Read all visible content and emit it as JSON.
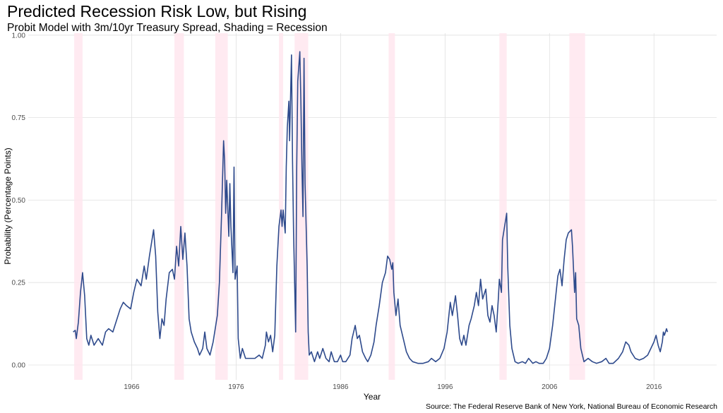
{
  "chart_data": {
    "type": "line",
    "title": "Predicted Recession Risk Low, but Rising",
    "subtitle": "Probit Model with 3m/10yr Treasury Spread, Shading = Recession",
    "xlabel": "Year",
    "ylabel": "Probability (Percentage Points)",
    "caption": "Source: The Federal Reserve Bank of New York, National Bureau of Economic Research",
    "xlim": [
      1956.1,
      2022
    ],
    "ylim": [
      -0.045,
      1.006
    ],
    "xticks": [
      1966,
      1976,
      1986,
      1996,
      2006,
      2016
    ],
    "yticks": [
      {
        "value": 0,
        "label": "0.00"
      },
      {
        "value": 0.25,
        "label": "0.25"
      },
      {
        "value": 0.5,
        "label": "0.50"
      },
      {
        "value": 0.75,
        "label": "0.75"
      },
      {
        "value": 1,
        "label": "1.00"
      }
    ],
    "grid": true,
    "recession_color": "#ffe6ee",
    "recessions": [
      [
        1960.5,
        1961.3
      ],
      [
        1970.1,
        1971.0
      ],
      [
        1974.0,
        1975.2
      ],
      [
        1980.1,
        1980.5
      ],
      [
        1981.6,
        1982.9
      ],
      [
        1990.6,
        1991.2
      ],
      [
        2001.2,
        2001.9
      ],
      [
        2007.9,
        2009.4
      ]
    ],
    "x": [
      1960.4,
      1960.6,
      1960.7,
      1960.9,
      1961.1,
      1961.3,
      1961.5,
      1961.7,
      1961.9,
      1962.1,
      1962.4,
      1962.8,
      1963.2,
      1963.5,
      1963.8,
      1964.2,
      1964.5,
      1964.9,
      1965.2,
      1965.5,
      1965.9,
      1966.2,
      1966.5,
      1966.9,
      1967.2,
      1967.4,
      1967.7,
      1967.9,
      1968.1,
      1968.3,
      1968.5,
      1968.7,
      1968.9,
      1969.1,
      1969.3,
      1969.6,
      1969.9,
      1970.1,
      1970.3,
      1970.5,
      1970.7,
      1970.9,
      1971.1,
      1971.3,
      1971.5,
      1971.7,
      1972.0,
      1972.3,
      1972.5,
      1972.8,
      1973.0,
      1973.2,
      1973.5,
      1973.8,
      1974.0,
      1974.2,
      1974.4,
      1974.6,
      1974.8,
      1974.9,
      1975.0,
      1975.1,
      1975.3,
      1975.4,
      1975.5,
      1975.7,
      1975.8,
      1975.9,
      1976.1,
      1976.2,
      1976.4,
      1976.6,
      1976.9,
      1977.4,
      1977.8,
      1978.2,
      1978.5,
      1978.8,
      1978.9,
      1979.1,
      1979.3,
      1979.5,
      1979.7,
      1979.9,
      1980.1,
      1980.3,
      1980.4,
      1980.5,
      1980.7,
      1980.8,
      1980.9,
      1981.05,
      1981.12,
      1981.3,
      1981.4,
      1981.5,
      1981.7,
      1981.8,
      1981.9,
      1982.1,
      1982.2,
      1982.3,
      1982.4,
      1982.5,
      1982.6,
      1982.8,
      1982.9,
      1983.0,
      1983.2,
      1983.5,
      1983.8,
      1984.0,
      1984.3,
      1984.6,
      1984.9,
      1985.1,
      1985.4,
      1985.7,
      1986.0,
      1986.2,
      1986.5,
      1986.9,
      1987.1,
      1987.4,
      1987.6,
      1987.8,
      1988.1,
      1988.4,
      1988.6,
      1988.9,
      1989.2,
      1989.4,
      1989.7,
      1990.0,
      1990.3,
      1990.5,
      1990.7,
      1990.9,
      1991.0,
      1991.1,
      1991.3,
      1991.5,
      1991.7,
      1992.0,
      1992.3,
      1992.6,
      1992.9,
      1993.4,
      1993.9,
      1994.4,
      1994.7,
      1995.1,
      1995.5,
      1995.9,
      1996.2,
      1996.5,
      1996.7,
      1997.0,
      1997.2,
      1997.4,
      1997.6,
      1997.8,
      1998.0,
      1998.3,
      1998.5,
      1998.8,
      1999.0,
      1999.2,
      1999.4,
      1999.6,
      1999.9,
      2000.1,
      2000.3,
      2000.5,
      2000.7,
      2000.9,
      2001.1,
      2001.2,
      2001.4,
      2001.5,
      2001.7,
      2001.9,
      2002.0,
      2002.2,
      2002.4,
      2002.7,
      2003.0,
      2003.4,
      2003.7,
      2004.0,
      2004.4,
      2004.7,
      2005.0,
      2005.4,
      2005.7,
      2006.0,
      2006.3,
      2006.5,
      2006.8,
      2007.0,
      2007.2,
      2007.4,
      2007.6,
      2007.8,
      2008.1,
      2008.2,
      2008.4,
      2008.5,
      2008.6,
      2008.8,
      2009.0,
      2009.3,
      2009.7,
      2010.1,
      2010.5,
      2011.0,
      2011.4,
      2011.7,
      2012.1,
      2012.6,
      2013.0,
      2013.3,
      2013.6,
      2013.8,
      2014.2,
      2014.6,
      2015.0,
      2015.4,
      2015.7,
      2016.0,
      2016.2,
      2016.4,
      2016.6,
      2016.8,
      2016.9,
      2017.0,
      2017.2,
      2017.3
    ],
    "series": [
      {
        "name": "Probability",
        "color": "#2e4a8c",
        "values": [
          0.1,
          0.105,
          0.08,
          0.13,
          0.22,
          0.28,
          0.21,
          0.08,
          0.06,
          0.09,
          0.06,
          0.08,
          0.06,
          0.1,
          0.11,
          0.1,
          0.13,
          0.17,
          0.19,
          0.18,
          0.17,
          0.22,
          0.26,
          0.24,
          0.3,
          0.26,
          0.33,
          0.37,
          0.41,
          0.33,
          0.16,
          0.08,
          0.14,
          0.12,
          0.2,
          0.28,
          0.29,
          0.26,
          0.36,
          0.3,
          0.42,
          0.32,
          0.4,
          0.3,
          0.14,
          0.1,
          0.07,
          0.05,
          0.03,
          0.05,
          0.1,
          0.05,
          0.03,
          0.07,
          0.11,
          0.15,
          0.25,
          0.45,
          0.68,
          0.62,
          0.46,
          0.56,
          0.39,
          0.55,
          0.42,
          0.28,
          0.6,
          0.26,
          0.3,
          0.08,
          0.02,
          0.05,
          0.02,
          0.02,
          0.02,
          0.03,
          0.02,
          0.06,
          0.1,
          0.07,
          0.09,
          0.04,
          0.09,
          0.3,
          0.42,
          0.47,
          0.42,
          0.47,
          0.4,
          0.6,
          0.72,
          0.8,
          0.68,
          0.94,
          0.62,
          0.4,
          0.1,
          0.6,
          0.86,
          0.95,
          0.8,
          0.6,
          0.45,
          0.93,
          0.55,
          0.3,
          0.1,
          0.03,
          0.04,
          0.01,
          0.04,
          0.02,
          0.05,
          0.02,
          0.01,
          0.04,
          0.01,
          0.01,
          0.03,
          0.01,
          0.01,
          0.03,
          0.08,
          0.12,
          0.08,
          0.09,
          0.04,
          0.02,
          0.01,
          0.03,
          0.07,
          0.12,
          0.18,
          0.25,
          0.28,
          0.33,
          0.32,
          0.29,
          0.31,
          0.22,
          0.15,
          0.2,
          0.12,
          0.08,
          0.04,
          0.02,
          0.01,
          0.005,
          0.005,
          0.01,
          0.02,
          0.01,
          0.02,
          0.05,
          0.1,
          0.19,
          0.15,
          0.21,
          0.15,
          0.08,
          0.06,
          0.09,
          0.06,
          0.12,
          0.14,
          0.18,
          0.22,
          0.18,
          0.26,
          0.2,
          0.23,
          0.15,
          0.13,
          0.18,
          0.15,
          0.1,
          0.2,
          0.26,
          0.22,
          0.38,
          0.42,
          0.46,
          0.3,
          0.12,
          0.05,
          0.01,
          0.005,
          0.01,
          0.005,
          0.02,
          0.005,
          0.01,
          0.005,
          0.005,
          0.02,
          0.05,
          0.12,
          0.18,
          0.27,
          0.29,
          0.24,
          0.32,
          0.38,
          0.4,
          0.41,
          0.36,
          0.22,
          0.28,
          0.14,
          0.12,
          0.05,
          0.01,
          0.02,
          0.01,
          0.005,
          0.01,
          0.02,
          0.005,
          0.005,
          0.02,
          0.04,
          0.07,
          0.06,
          0.04,
          0.02,
          0.015,
          0.02,
          0.03,
          0.05,
          0.07,
          0.09,
          0.06,
          0.04,
          0.07,
          0.1,
          0.09,
          0.11,
          0.1
        ]
      }
    ]
  }
}
